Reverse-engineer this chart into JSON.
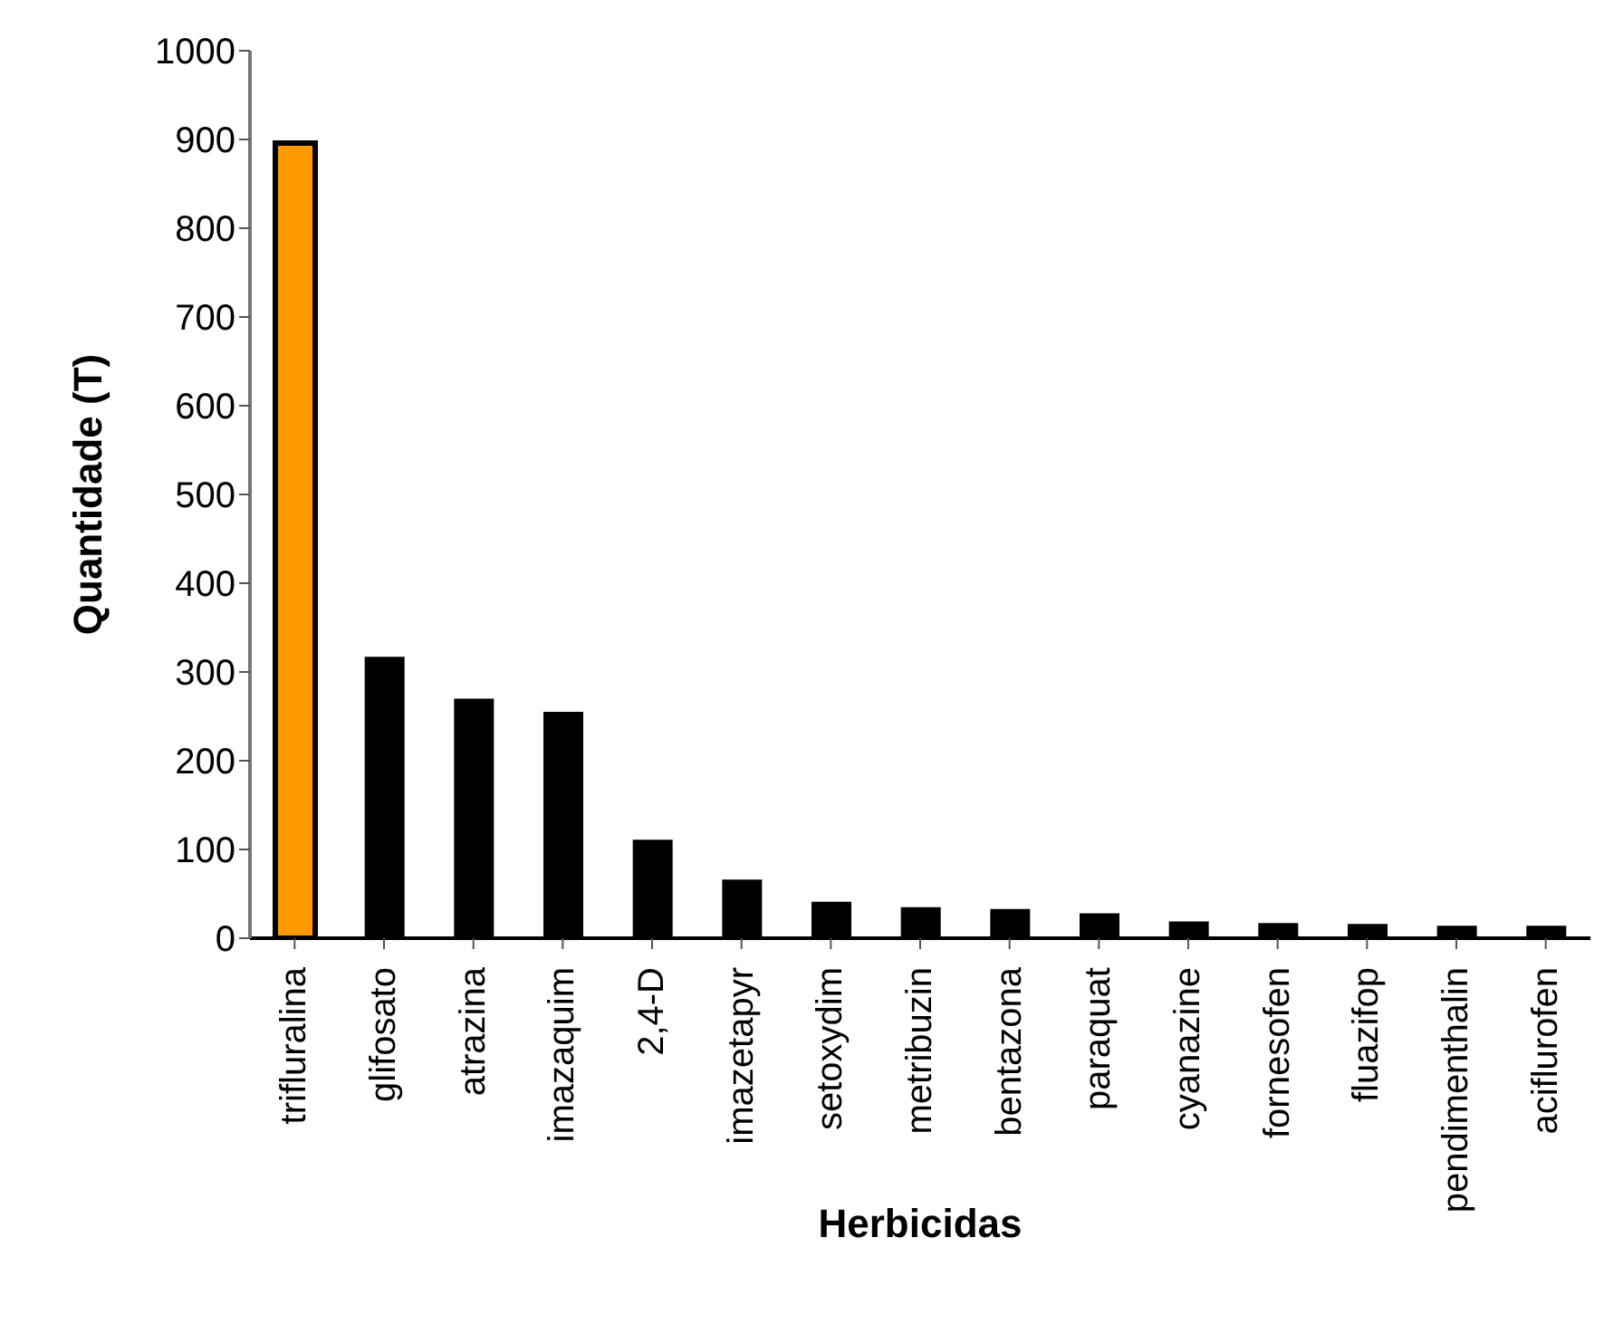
{
  "chart_data": {
    "type": "bar",
    "xlabel": "Herbicidas",
    "ylabel": "Quantidade (T)",
    "categories": [
      "trifluralina",
      "glifosato",
      "atrazina",
      "imazaquim",
      "2,4-D",
      "imazetapyr",
      "setoxydim",
      "metribuzin",
      "bentazona",
      "paraquat",
      "cyanazine",
      "fornesofen",
      "fluazifop",
      "pendimenthalin",
      "aciflurofen"
    ],
    "values": [
      896,
      317,
      270,
      255,
      111,
      66,
      41,
      35,
      33,
      28,
      19,
      17,
      16,
      14,
      14
    ],
    "colors": [
      "#ff9900",
      "#000000",
      "#000000",
      "#000000",
      "#000000",
      "#000000",
      "#000000",
      "#000000",
      "#000000",
      "#000000",
      "#000000",
      "#000000",
      "#000000",
      "#000000",
      "#000000"
    ],
    "ylim": [
      0,
      1000
    ],
    "yticks": [
      0,
      100,
      200,
      300,
      400,
      500,
      600,
      700,
      800,
      900,
      1000
    ],
    "grid": false,
    "legend": false
  }
}
